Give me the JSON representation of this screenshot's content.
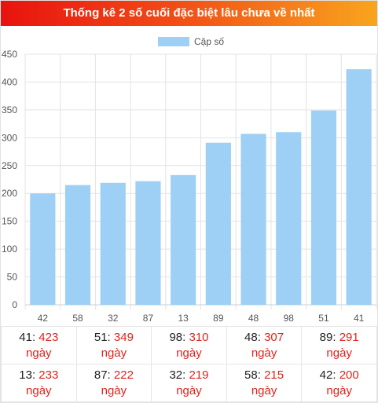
{
  "header": {
    "title": "Thống kê 2 số cuối đặc biệt lâu chưa về nhất"
  },
  "colors": {
    "bar": "#9ed0f5",
    "header_start": "#e8130f",
    "header_end": "#f8a51e",
    "value_text": "#e0231c"
  },
  "chart_data": {
    "type": "bar",
    "title": "",
    "xlabel": "",
    "ylabel": "",
    "legend": {
      "position": "top-center",
      "label": "Cặp số"
    },
    "categories": [
      "42",
      "58",
      "32",
      "87",
      "13",
      "89",
      "48",
      "98",
      "51",
      "41"
    ],
    "series": [
      {
        "name": "Cặp số",
        "values": [
          200,
          215,
          219,
          222,
          233,
          291,
          307,
          310,
          349,
          423
        ]
      }
    ],
    "ylim": [
      0,
      450
    ],
    "yticks": [
      0,
      50,
      100,
      150,
      200,
      250,
      300,
      350,
      400,
      450
    ],
    "grid": true
  },
  "stats": {
    "unit": "ngày",
    "rows": [
      [
        {
          "pair": "41",
          "days": "423"
        },
        {
          "pair": "51",
          "days": "349"
        },
        {
          "pair": "98",
          "days": "310"
        },
        {
          "pair": "48",
          "days": "307"
        },
        {
          "pair": "89",
          "days": "291"
        }
      ],
      [
        {
          "pair": "13",
          "days": "233"
        },
        {
          "pair": "87",
          "days": "222"
        },
        {
          "pair": "32",
          "days": "219"
        },
        {
          "pair": "58",
          "days": "215"
        },
        {
          "pair": "42",
          "days": "200"
        }
      ]
    ]
  }
}
